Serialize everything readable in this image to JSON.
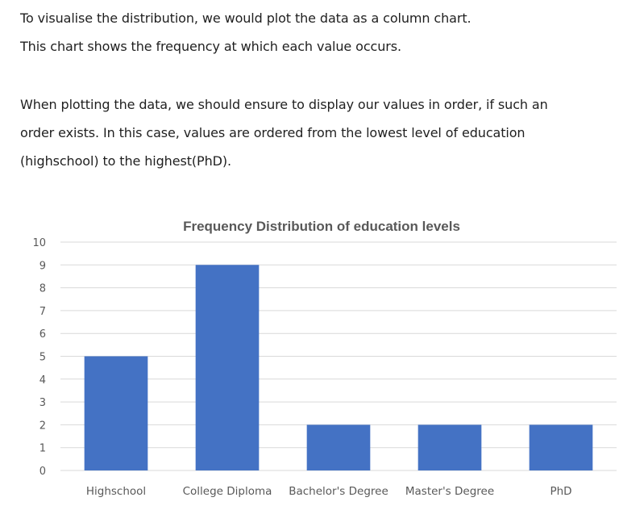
{
  "text": {
    "paragraph_1": [
      "To visualise the distribution, we would plot the data as a column chart.",
      "This chart shows the frequency at which each value occurs."
    ],
    "paragraph_2": [
      "When plotting the data, we should ensure to display our values in order, if such an",
      "order exists. In this case, values are ordered from the lowest level of education",
      "(highschool) to the highest(PhD)."
    ]
  },
  "chart_data": {
    "type": "bar",
    "title": "Frequency Distribution of education levels",
    "categories": [
      "Highschool",
      "College Diploma",
      "Bachelor's Degree",
      "Master's Degree",
      "PhD"
    ],
    "values": [
      5,
      9,
      2,
      2,
      2
    ],
    "ylim": [
      0,
      10
    ],
    "yticks": [
      0,
      1,
      2,
      3,
      4,
      5,
      6,
      7,
      8,
      9,
      10
    ],
    "grid": true,
    "legend": "none",
    "bar_color": "#4472C4",
    "grid_color": "#D9D9D9",
    "text_color": "#595959"
  }
}
